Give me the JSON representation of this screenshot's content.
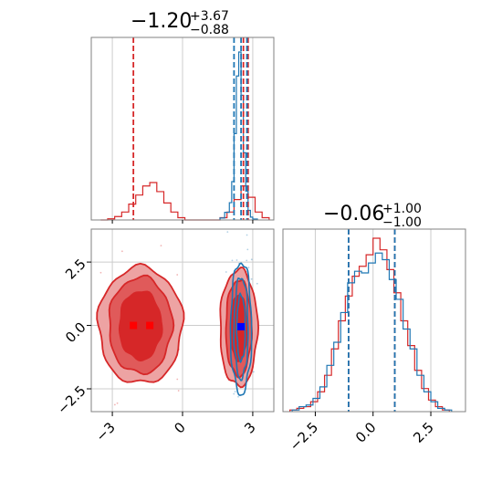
{
  "colors": {
    "red": "#d62728",
    "blue": "#1f77b4",
    "grid": "#cccccc",
    "frame": "#808080",
    "red_light": "#eda3a3",
    "red_mid": "#e05a5a"
  },
  "titles": {
    "param1": {
      "median": "−1.20",
      "plus": "+3.67",
      "minus": "−0.88"
    },
    "param2": {
      "median": "−0.06",
      "plus": "+1.00",
      "minus": "−1.00"
    }
  },
  "chart_data": [
    {
      "type": "histogram",
      "panel": "marginal-param1",
      "xlim": [
        -3.9,
        3.9
      ],
      "grid": true,
      "series": [
        {
          "color": "#d62728",
          "bin_edges": [
            -3.5,
            -3.2,
            -2.9,
            -2.6,
            -2.3,
            -2.0,
            -1.7,
            -1.4,
            -1.1,
            -0.8,
            -0.5,
            -0.2,
            0.1,
            0.4,
            0.7,
            1.0,
            1.3,
            1.6,
            1.9,
            2.2,
            2.5,
            2.8,
            3.1,
            3.4,
            3.7
          ],
          "counts": [
            0,
            1,
            3,
            7,
            14,
            22,
            30,
            33,
            25,
            15,
            7,
            2,
            0,
            0,
            0,
            0,
            0,
            2,
            7,
            18,
            30,
            20,
            7,
            2
          ]
        },
        {
          "color": "#1f77b4",
          "bin_edges": [
            1.6,
            1.8,
            2.0,
            2.1,
            2.2,
            2.3,
            2.4,
            2.5,
            2.6,
            2.7,
            2.8,
            2.9,
            3.0,
            3.2
          ],
          "counts": [
            2,
            8,
            18,
            40,
            90,
            150,
            175,
            130,
            70,
            30,
            10,
            3,
            1
          ]
        }
      ],
      "vlines": [
        {
          "color": "#d62728",
          "x": -2.1
        },
        {
          "color": "#d62728",
          "x": 2.6
        },
        {
          "color": "#d62728",
          "x": 2.8
        },
        {
          "color": "#1f77b4",
          "x": 2.2
        },
        {
          "color": "#1f77b4",
          "x": 2.5
        },
        {
          "color": "#1f77b4",
          "x": 2.75
        }
      ]
    },
    {
      "type": "contour",
      "panel": "joint",
      "xlim": [
        -3.9,
        3.9
      ],
      "ylim": [
        -3.4,
        3.8
      ],
      "xticks": [
        -3,
        0,
        3
      ],
      "yticks": [
        -2.5,
        0.0,
        2.5
      ],
      "xtick_labels": [
        "−3",
        "0",
        "3"
      ],
      "ytick_labels": [
        "−2.5",
        "0.0",
        "2.5"
      ],
      "grid": true,
      "red_blobs": [
        {
          "cx": -1.8,
          "cy": 0.0,
          "levels": [
            [
              1.8,
              2.3
            ],
            [
              1.35,
              1.9
            ],
            [
              0.9,
              1.35
            ]
          ]
        },
        {
          "cx": 2.4,
          "cy": -0.1,
          "levels": [
            [
              0.8,
              2.3
            ],
            [
              0.55,
              1.9
            ],
            [
              0.35,
              1.3
            ]
          ]
        }
      ],
      "blue_contours": {
        "cx": 2.5,
        "cy": -0.1,
        "levels": [
          [
            0.45,
            2.6
          ],
          [
            0.3,
            2.0
          ],
          [
            0.18,
            1.3
          ]
        ]
      },
      "medians": [
        {
          "color": "#ff0000",
          "x": -2.1,
          "y": 0.0
        },
        {
          "color": "#ff0000",
          "x": -1.4,
          "y": 0.0
        },
        {
          "color": "#0000ff",
          "x": 2.5,
          "y": -0.05
        }
      ]
    },
    {
      "type": "histogram",
      "panel": "marginal-param2",
      "xlim": [
        -3.9,
        4.0
      ],
      "xticks": [
        -2.5,
        0.0,
        2.5
      ],
      "xtick_labels": [
        "−2.5",
        "0.0",
        "2.5"
      ],
      "grid": true,
      "series": [
        {
          "color": "#d62728",
          "bin_edges": [
            -3.6,
            -3.3,
            -3.0,
            -2.7,
            -2.4,
            -2.1,
            -1.8,
            -1.5,
            -1.2,
            -0.9,
            -0.6,
            -0.3,
            0.0,
            0.3,
            0.6,
            0.9,
            1.2,
            1.5,
            1.8,
            2.1,
            2.4,
            2.7,
            3.0,
            3.3
          ],
          "counts": [
            1,
            2,
            3,
            6,
            12,
            22,
            38,
            55,
            70,
            82,
            88,
            95,
            105,
            98,
            86,
            72,
            55,
            40,
            25,
            14,
            7,
            3,
            1
          ]
        },
        {
          "color": "#1f77b4",
          "bin_edges": [
            -3.5,
            -3.2,
            -2.9,
            -2.6,
            -2.3,
            -2.0,
            -1.7,
            -1.4,
            -1.1,
            -0.8,
            -0.5,
            -0.2,
            0.1,
            0.4,
            0.7,
            1.0,
            1.3,
            1.6,
            1.9,
            2.2,
            2.5,
            2.8,
            3.1,
            3.4
          ],
          "counts": [
            1,
            3,
            4,
            8,
            15,
            28,
            42,
            60,
            78,
            85,
            84,
            90,
            96,
            92,
            80,
            68,
            50,
            38,
            22,
            12,
            6,
            2,
            1
          ]
        }
      ],
      "vlines": [
        {
          "color": "#d62728",
          "x": -1.06
        },
        {
          "color": "#d62728",
          "x": 0.94
        },
        {
          "color": "#1f77b4",
          "x": -1.06
        },
        {
          "color": "#1f77b4",
          "x": 0.94
        }
      ]
    }
  ]
}
